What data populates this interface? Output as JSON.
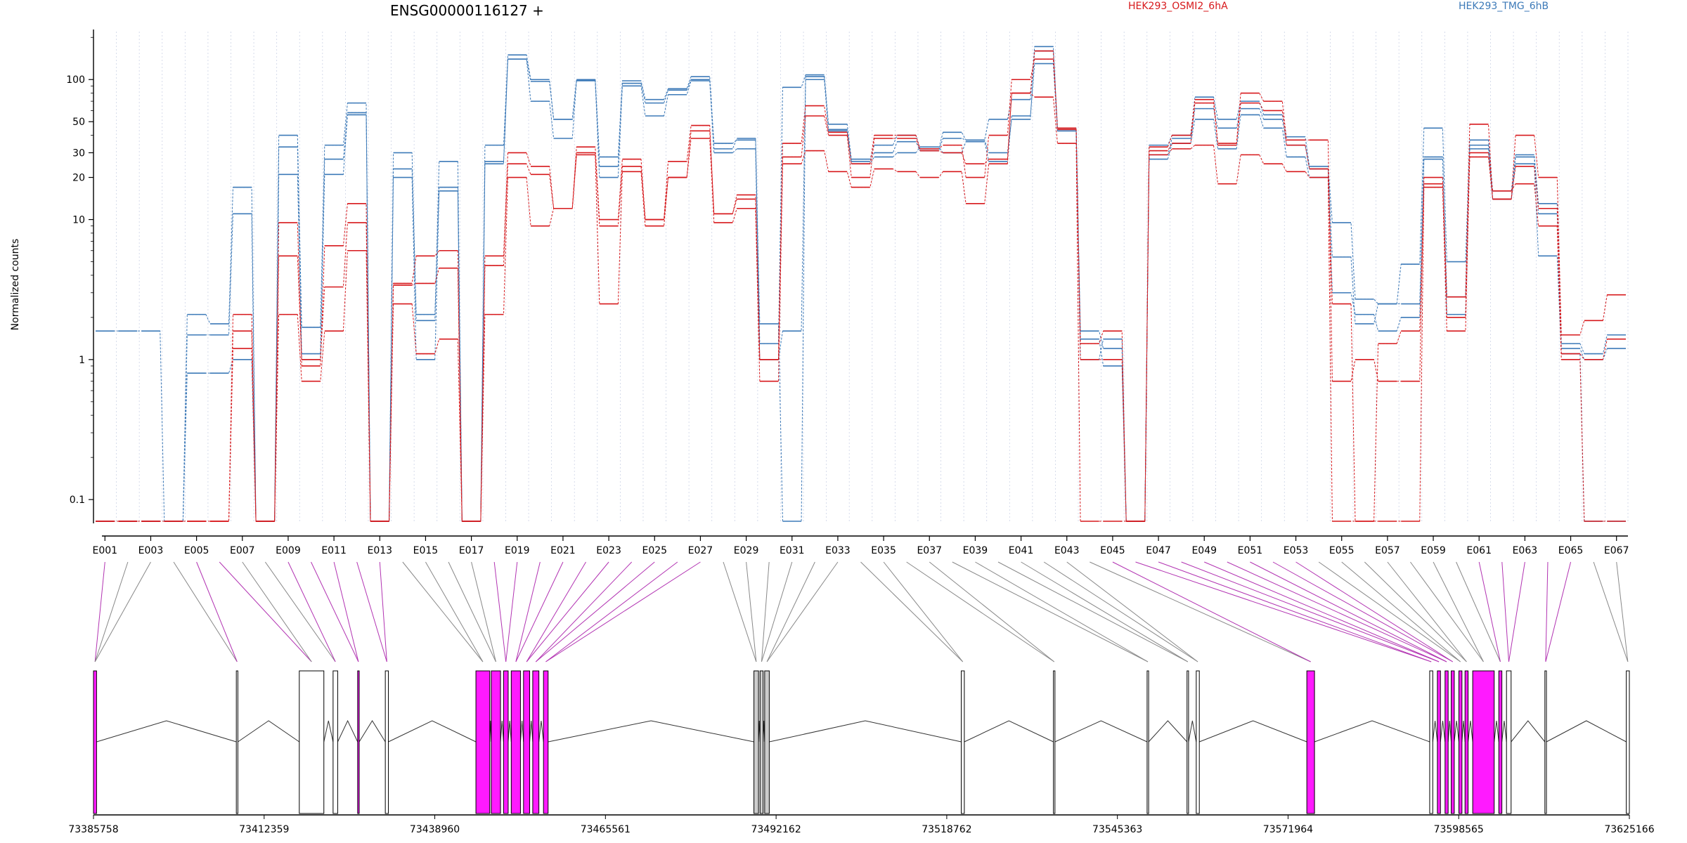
{
  "chart_data": {
    "type": "line",
    "title": "ENSG00000116127 +",
    "ylabel": "Normalized counts",
    "yscale": "log",
    "ylim": [
      0.07,
      220
    ],
    "y_ticks": [
      {
        "value": 0.1,
        "label": "0.1"
      },
      {
        "value": 1,
        "label": "1"
      },
      {
        "value": 10,
        "label": "10"
      },
      {
        "value": 20,
        "label": "20"
      },
      {
        "value": 30,
        "label": "30"
      },
      {
        "value": 50,
        "label": "50"
      },
      {
        "value": 100,
        "label": "100"
      }
    ],
    "x_tick_labels": [
      "E001",
      "E003",
      "E005",
      "E007",
      "E009",
      "E011",
      "E013",
      "E015",
      "E017",
      "E019",
      "E021",
      "E023",
      "E025",
      "E027",
      "E029",
      "E031",
      "E033",
      "E035",
      "E037",
      "E039",
      "E041",
      "E043",
      "E045",
      "E047",
      "E049",
      "E051",
      "E053",
      "E055",
      "E057",
      "E059",
      "E061",
      "E063",
      "E065",
      "E067"
    ],
    "legend": [
      {
        "name": "HEK293_OSMI2_6hA",
        "color": "#d7191c"
      },
      {
        "name": "HEK293_TMG_6hB",
        "color": "#3d7ab8"
      }
    ],
    "series": [
      {
        "name": "HEK293_TMG_6hB",
        "color": "#3d7ab8",
        "values": [
          1.6,
          1.6,
          1.6,
          0.07,
          2.1,
          1.8,
          17,
          0.07,
          40,
          1.7,
          34,
          68,
          0.07,
          30,
          1.9,
          26,
          0.07,
          34,
          150,
          100,
          52,
          100,
          28,
          98,
          72,
          86,
          105,
          35,
          37,
          1.3,
          88,
          108,
          48,
          27,
          34,
          40,
          32,
          42,
          37,
          52,
          72,
          172,
          43,
          1.4,
          0.9,
          0.07,
          34,
          40,
          75,
          52,
          70,
          56,
          39,
          24,
          9.5,
          2.7,
          2.5,
          4.8,
          45,
          5,
          37,
          16,
          29,
          13,
          1.3,
          1.1,
          1.5
        ]
      },
      {
        "name": "HEK293_TMG_6hB",
        "color": "#3d7ab8",
        "values": [
          0.07,
          0.07,
          0.07,
          0.07,
          1.5,
          1.5,
          11,
          0.07,
          21,
          1.1,
          21,
          56,
          0.07,
          20,
          1.0,
          16,
          0.07,
          25,
          140,
          70,
          38,
          98,
          20,
          90,
          55,
          78,
          98,
          30,
          32,
          1.0,
          1.6,
          100,
          43,
          25,
          28,
          30,
          33,
          30,
          36,
          26,
          55,
          130,
          43,
          1.0,
          1.4,
          0.07,
          27,
          35,
          52,
          32,
          56,
          45,
          28,
          20,
          3.0,
          2.1,
          1.6,
          2.0,
          27,
          2.1,
          32,
          14,
          25,
          5.5,
          1.1,
          0.07,
          0.07
        ]
      },
      {
        "name": "HEK293_TMG_6hB",
        "color": "#3d7ab8",
        "values": [
          0.07,
          0.07,
          0.07,
          0.07,
          0.8,
          0.8,
          1.0,
          0.07,
          33,
          1.0,
          27,
          58,
          0.07,
          23,
          2.1,
          17,
          0.07,
          26,
          140,
          97,
          52,
          99,
          24,
          94,
          68,
          84,
          100,
          32,
          38,
          1.8,
          0.07,
          105,
          44,
          26,
          30,
          36,
          31,
          38,
          37,
          30,
          52,
          160,
          45,
          1.6,
          1.2,
          0.07,
          29,
          38,
          62,
          45,
          62,
          52,
          34,
          23,
          5.4,
          1.8,
          2.5,
          2.5,
          28,
          2.8,
          34,
          14,
          28,
          11,
          1.2,
          1.0,
          1.2
        ]
      },
      {
        "name": "HEK293_OSMI2_6hA",
        "color": "#d7191c",
        "values": [
          0.07,
          0.07,
          0.07,
          0.07,
          0.07,
          0.07,
          2.1,
          0.07,
          9.5,
          0.9,
          6.5,
          13,
          0.07,
          3.5,
          5.5,
          6.0,
          0.07,
          5.5,
          30,
          24,
          12,
          33,
          10,
          27,
          10,
          26,
          47,
          11,
          15,
          1.0,
          35,
          65,
          42,
          25,
          40,
          40,
          32,
          34,
          20,
          40,
          100,
          140,
          45,
          1.3,
          1.6,
          0.07,
          33,
          40,
          72,
          35,
          80,
          70,
          37,
          37,
          0.7,
          1.0,
          0.7,
          0.7,
          20,
          2.8,
          48,
          14,
          40,
          20,
          1.5,
          1.9,
          2.9
        ]
      },
      {
        "name": "HEK293_OSMI2_6hA",
        "color": "#d7191c",
        "values": [
          0.07,
          0.07,
          0.07,
          0.07,
          0.07,
          0.07,
          1.6,
          0.07,
          5.5,
          1.0,
          3.3,
          9.5,
          0.07,
          3.4,
          3.5,
          4.5,
          0.07,
          4.7,
          25,
          21,
          12,
          30,
          9.0,
          24,
          10,
          20,
          43,
          11,
          14,
          1.0,
          28,
          55,
          40,
          20,
          38,
          38,
          31,
          30,
          25,
          27,
          80,
          160,
          44,
          1.0,
          1.0,
          0.07,
          31,
          35,
          68,
          34,
          68,
          60,
          34,
          23,
          2.5,
          0.07,
          1.3,
          1.6,
          18,
          2.0,
          28,
          14,
          24,
          12,
          1.1,
          1.0,
          1.4
        ]
      },
      {
        "name": "HEK293_OSMI2_6hA",
        "color": "#d7191c",
        "values": [
          0.07,
          0.07,
          0.07,
          0.07,
          0.07,
          0.07,
          1.2,
          0.07,
          2.1,
          0.7,
          1.6,
          6.0,
          0.07,
          2.5,
          1.1,
          1.4,
          0.07,
          2.1,
          20,
          9.0,
          12,
          29,
          2.5,
          22,
          9.0,
          20,
          38,
          9.5,
          12,
          0.7,
          25,
          31,
          22,
          17,
          23,
          22,
          20,
          22,
          13,
          25,
          80,
          75,
          35,
          0.07,
          0.07,
          0.07,
          29,
          32,
          34,
          18,
          29,
          25,
          22,
          20,
          0.07,
          0.07,
          0.07,
          0.07,
          17,
          1.6,
          30,
          16,
          18,
          9.0,
          1.0,
          0.07,
          0.07
        ]
      }
    ],
    "genomic_tick_labels": [
      "73385758",
      "73412359",
      "73438960",
      "73465561",
      "73492162",
      "73518762",
      "73545363",
      "73571964",
      "73598565",
      "73625166"
    ],
    "gene_exons": {
      "highlighted": [
        1,
        5,
        6,
        9,
        10,
        11,
        12,
        13,
        18,
        19,
        20,
        21,
        22,
        23,
        24,
        25,
        26,
        27,
        45,
        46,
        47,
        48,
        49,
        50,
        51,
        52,
        53,
        61,
        62,
        63,
        64,
        65
      ],
      "boxes_fraction": [
        [
          0.0,
          0.002
        ],
        [
          0.093,
          0.094
        ],
        [
          0.134,
          0.15
        ],
        [
          0.156,
          0.159
        ],
        [
          0.172,
          0.173
        ],
        [
          0.19,
          0.192
        ],
        [
          0.249,
          0.258
        ],
        [
          0.259,
          0.265
        ],
        [
          0.267,
          0.27
        ],
        [
          0.272,
          0.278
        ],
        [
          0.28,
          0.284
        ],
        [
          0.286,
          0.29
        ],
        [
          0.293,
          0.296
        ],
        [
          0.43,
          0.433
        ],
        [
          0.434,
          0.436
        ],
        [
          0.437,
          0.44
        ],
        [
          0.565,
          0.567
        ],
        [
          0.625,
          0.626
        ],
        [
          0.686,
          0.687
        ],
        [
          0.712,
          0.713
        ],
        [
          0.718,
          0.72
        ],
        [
          0.79,
          0.795
        ],
        [
          0.87,
          0.872
        ],
        [
          0.875,
          0.877
        ],
        [
          0.88,
          0.882
        ],
        [
          0.884,
          0.886
        ],
        [
          0.889,
          0.891
        ],
        [
          0.893,
          0.895
        ],
        [
          0.898,
          0.912
        ],
        [
          0.915,
          0.917
        ],
        [
          0.92,
          0.923
        ],
        [
          0.945,
          0.946
        ],
        [
          0.998,
          1.0
        ]
      ]
    }
  }
}
